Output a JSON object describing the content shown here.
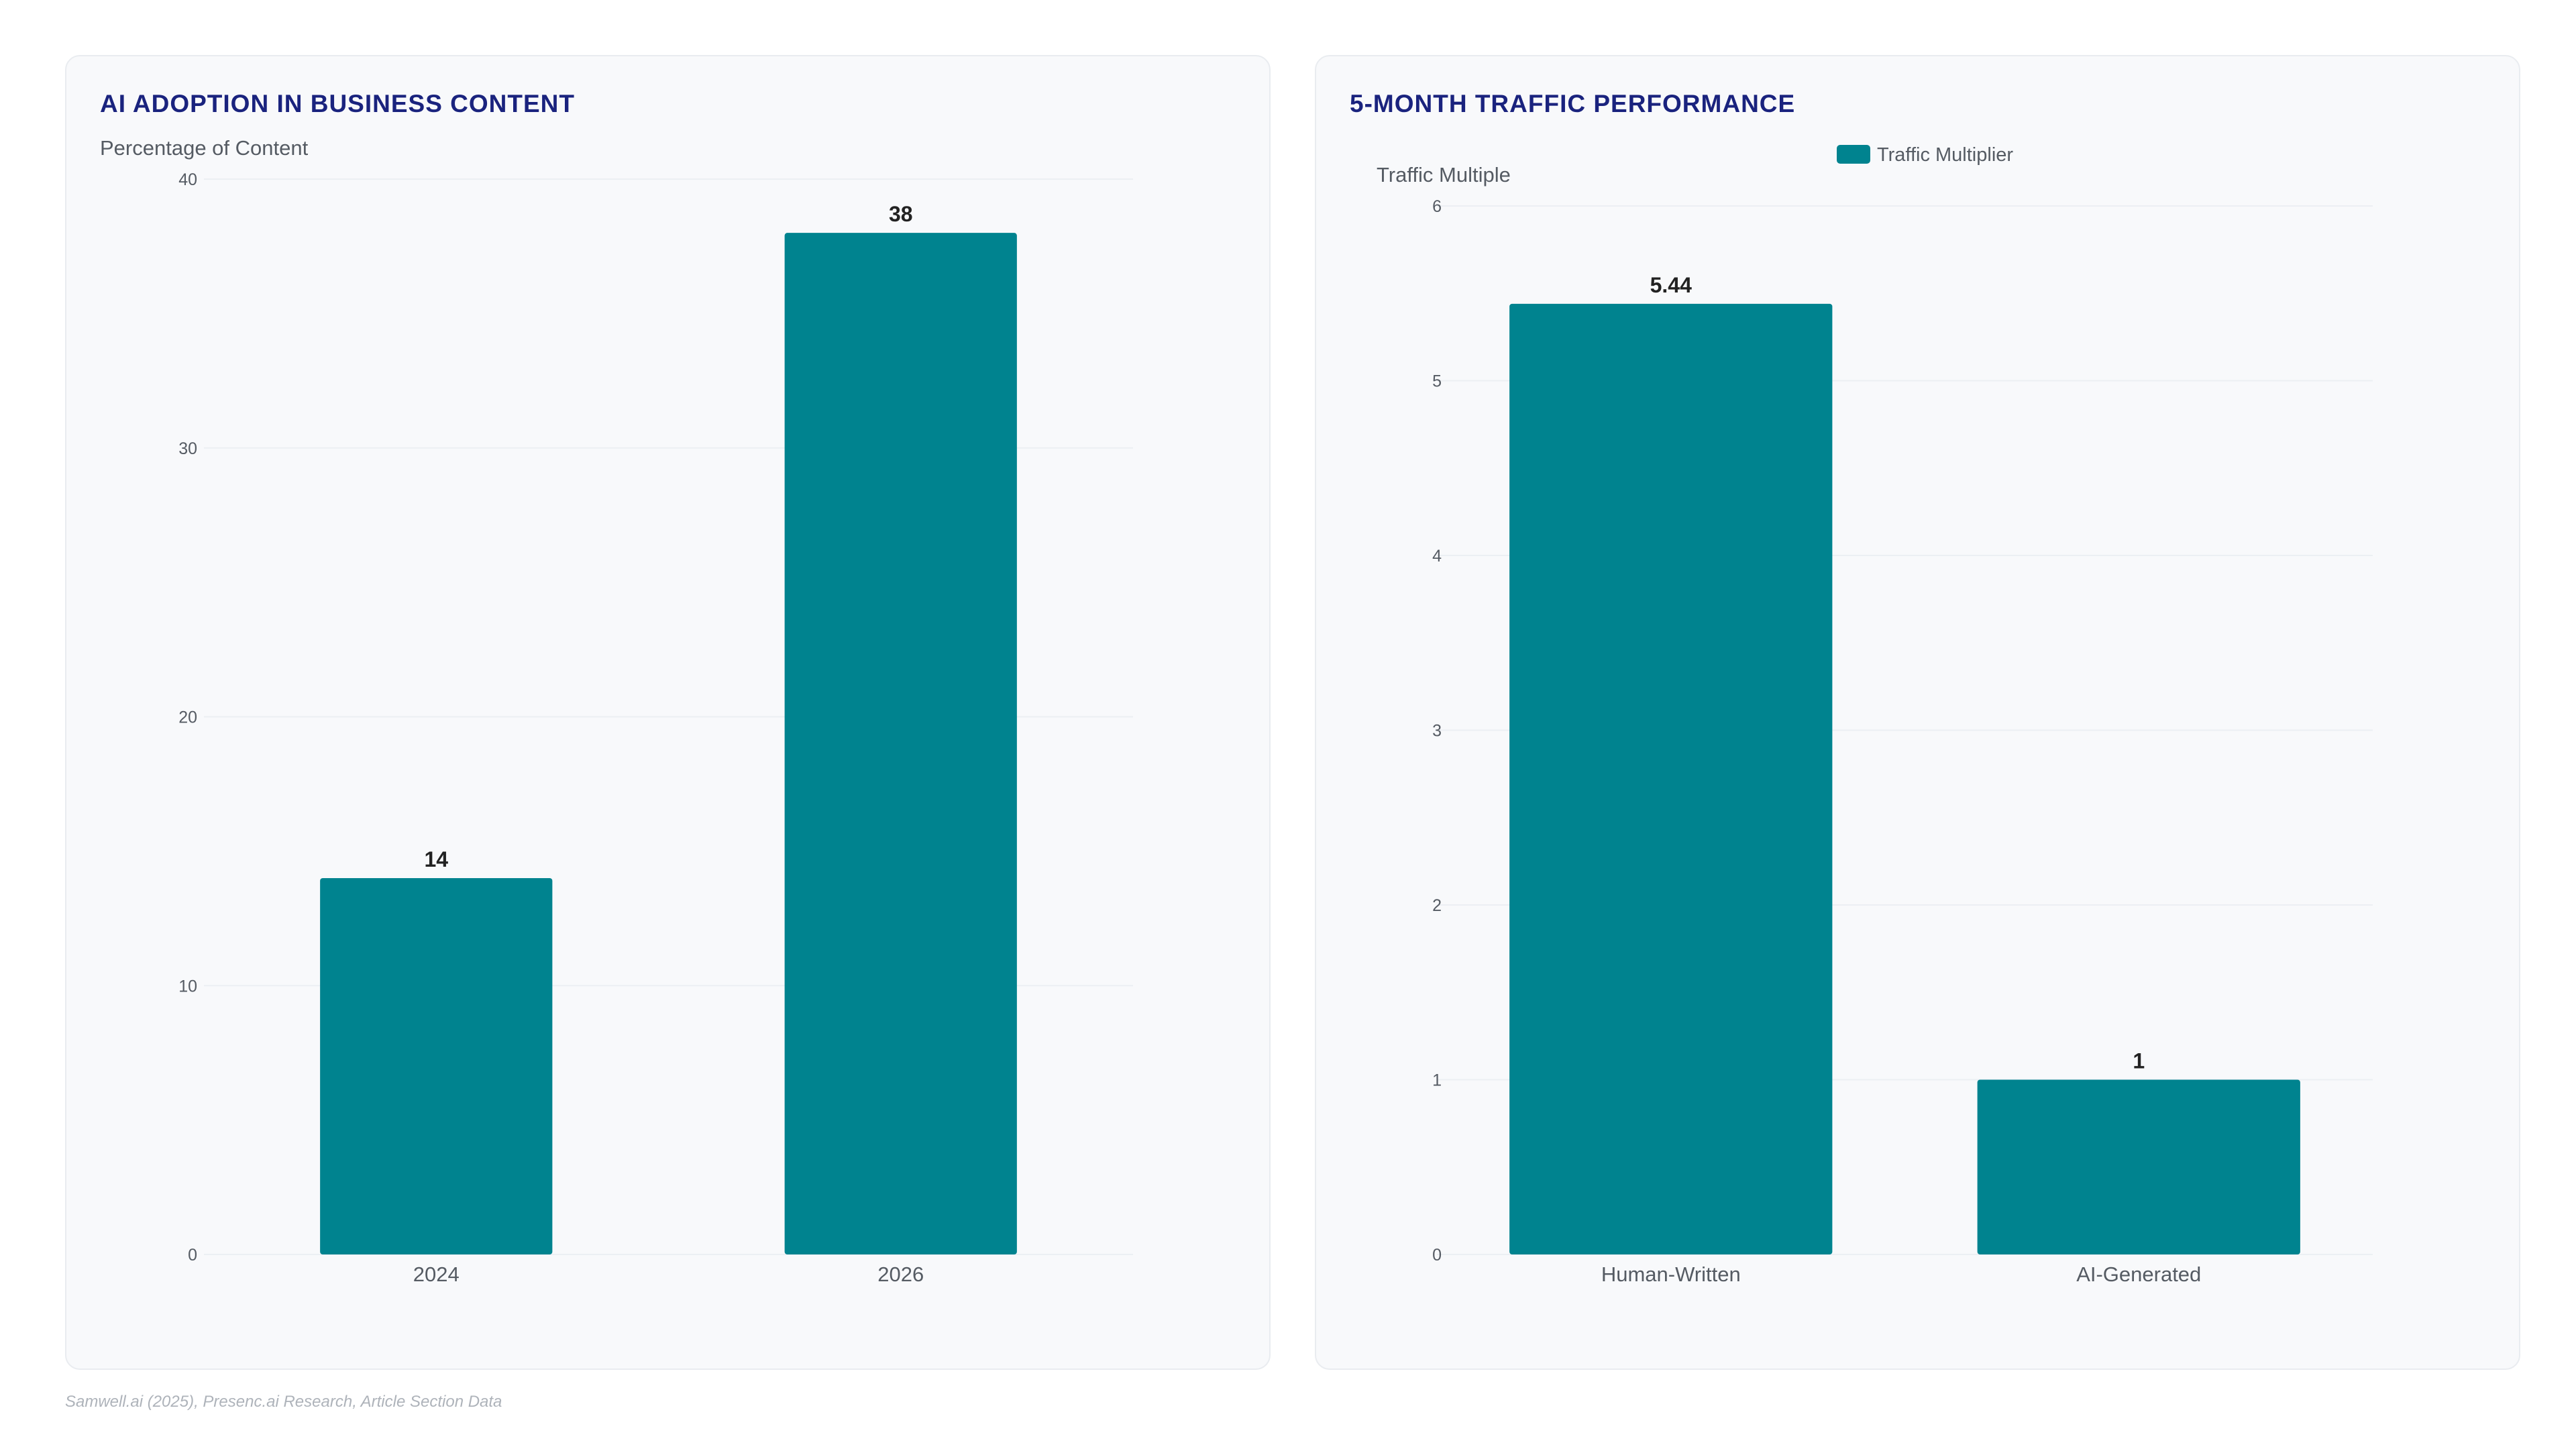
{
  "source": "Samwell.ai (2025), Presenc.ai Research, Article Section Data",
  "colors": {
    "bar": "#00838f",
    "title": "#1a237e",
    "axis_text": "#555b63",
    "value_text": "#222222",
    "grid": "#eceff3"
  },
  "chart_data": [
    {
      "type": "bar",
      "title": "AI ADOPTION IN BUSINESS CONTENT",
      "ylabel": "Percentage of Content",
      "xlabel": "",
      "categories": [
        "2024",
        "2026"
      ],
      "values": [
        14,
        38
      ],
      "data_labels": [
        "14",
        "38"
      ],
      "ylim": [
        0,
        40
      ],
      "yticks": [
        0,
        10,
        20,
        30,
        40
      ],
      "grid": true,
      "legend": null
    },
    {
      "type": "bar",
      "title": "5-MONTH TRAFFIC PERFORMANCE",
      "ylabel": "Traffic Multiple",
      "xlabel": "",
      "categories": [
        "Human-Written",
        "AI-Generated"
      ],
      "series": [
        {
          "name": "Traffic Multiplier",
          "values": [
            5.44,
            1
          ]
        }
      ],
      "data_labels": [
        "5.44",
        "1"
      ],
      "ylim": [
        0,
        6
      ],
      "yticks": [
        0,
        1,
        2,
        3,
        4,
        5,
        6
      ],
      "grid": true,
      "legend": "top-center"
    }
  ]
}
